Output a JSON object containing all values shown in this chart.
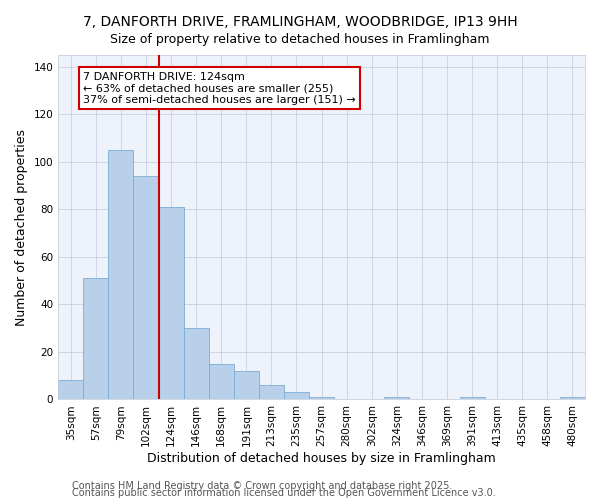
{
  "title": "7, DANFORTH DRIVE, FRAMLINGHAM, WOODBRIDGE, IP13 9HH",
  "subtitle": "Size of property relative to detached houses in Framlingham",
  "xlabel": "Distribution of detached houses by size in Framlingham",
  "ylabel": "Number of detached properties",
  "categories": [
    "35sqm",
    "57sqm",
    "79sqm",
    "102sqm",
    "124sqm",
    "146sqm",
    "168sqm",
    "191sqm",
    "213sqm",
    "235sqm",
    "257sqm",
    "280sqm",
    "302sqm",
    "324sqm",
    "346sqm",
    "369sqm",
    "391sqm",
    "413sqm",
    "435sqm",
    "458sqm",
    "480sqm"
  ],
  "values": [
    8,
    51,
    105,
    94,
    81,
    30,
    15,
    12,
    6,
    3,
    1,
    0,
    0,
    1,
    0,
    0,
    1,
    0,
    0,
    0,
    1
  ],
  "bar_color": "#b8d0ea",
  "bar_edge_color": "#7aadd4",
  "vline_index": 4,
  "vline_color": "#cc0000",
  "annotation_line1": "7 DANFORTH DRIVE: 124sqm",
  "annotation_line2": "← 63% of detached houses are smaller (255)",
  "annotation_line3": "37% of semi-detached houses are larger (151) →",
  "annotation_box_color": "#cc0000",
  "ylim": [
    0,
    145
  ],
  "yticks": [
    0,
    20,
    40,
    60,
    80,
    100,
    120,
    140
  ],
  "footer1": "Contains HM Land Registry data © Crown copyright and database right 2025.",
  "footer2": "Contains public sector information licensed under the Open Government Licence v3.0.",
  "bg_color": "#eef2fb",
  "grid_color": "#c8d0e0",
  "title_fontsize": 10,
  "subtitle_fontsize": 9,
  "axis_label_fontsize": 9,
  "tick_fontsize": 7.5,
  "annotation_fontsize": 8,
  "footer_fontsize": 7
}
